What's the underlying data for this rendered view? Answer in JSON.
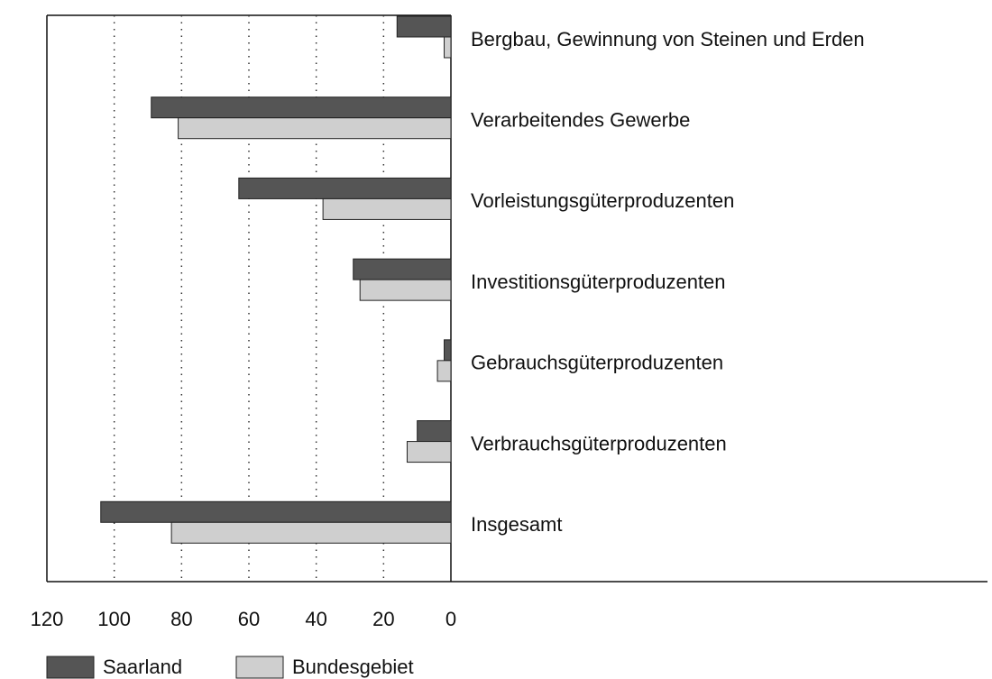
{
  "chart_data": {
    "type": "barh",
    "categories": [
      "Bergbau, Gewinnung von Steinen und Erden",
      "Verarbeitendes Gewerbe",
      "Vorleistungsgüterproduzenten",
      "Investitionsgüterproduzenten",
      "Gebrauchsgüterproduzenten",
      "Verbrauchsgüterproduzenten",
      "Insgesamt"
    ],
    "series": [
      {
        "name": "Saarland",
        "color": "#555555",
        "values": [
          16,
          89,
          63,
          29,
          2,
          10,
          104
        ]
      },
      {
        "name": "Bundesgebiet",
        "color": "#cfcfcf",
        "values": [
          2,
          81,
          38,
          27,
          4,
          13,
          83
        ]
      }
    ],
    "xlim": [
      0,
      120
    ],
    "xticks": [
      0,
      20,
      40,
      60,
      80,
      100,
      120
    ],
    "x_inverted": true,
    "grid": true
  }
}
